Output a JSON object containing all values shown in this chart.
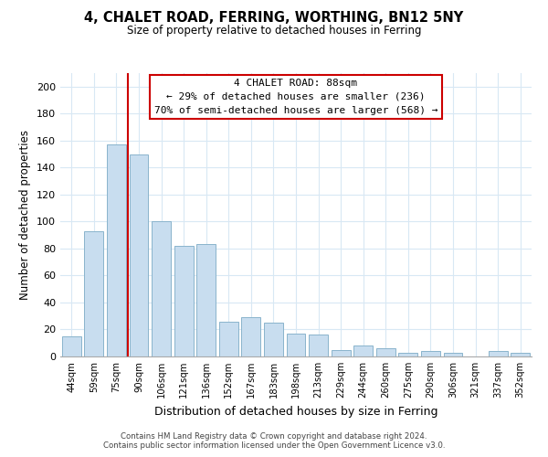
{
  "title": "4, CHALET ROAD, FERRING, WORTHING, BN12 5NY",
  "subtitle": "Size of property relative to detached houses in Ferring",
  "xlabel": "Distribution of detached houses by size in Ferring",
  "ylabel": "Number of detached properties",
  "bar_color": "#c8ddef",
  "bar_edge_color": "#8ab4cc",
  "categories": [
    "44sqm",
    "59sqm",
    "75sqm",
    "90sqm",
    "106sqm",
    "121sqm",
    "136sqm",
    "152sqm",
    "167sqm",
    "183sqm",
    "198sqm",
    "213sqm",
    "229sqm",
    "244sqm",
    "260sqm",
    "275sqm",
    "290sqm",
    "306sqm",
    "321sqm",
    "337sqm",
    "352sqm"
  ],
  "values": [
    15,
    93,
    157,
    150,
    100,
    82,
    83,
    26,
    29,
    25,
    17,
    16,
    5,
    8,
    6,
    3,
    4,
    3,
    0,
    4,
    3
  ],
  "ylim": [
    0,
    210
  ],
  "yticks": [
    0,
    20,
    40,
    60,
    80,
    100,
    120,
    140,
    160,
    180,
    200
  ],
  "vline_x": 3.0,
  "vline_color": "#cc0000",
  "ann_line1": "4 CHALET ROAD: 88sqm",
  "ann_line2": "← 29% of detached houses are smaller (236)",
  "ann_line3": "70% of semi-detached houses are larger (568) →",
  "footer1": "Contains HM Land Registry data © Crown copyright and database right 2024.",
  "footer2": "Contains public sector information licensed under the Open Government Licence v3.0.",
  "background_color": "#ffffff",
  "grid_color": "#d8e8f4"
}
